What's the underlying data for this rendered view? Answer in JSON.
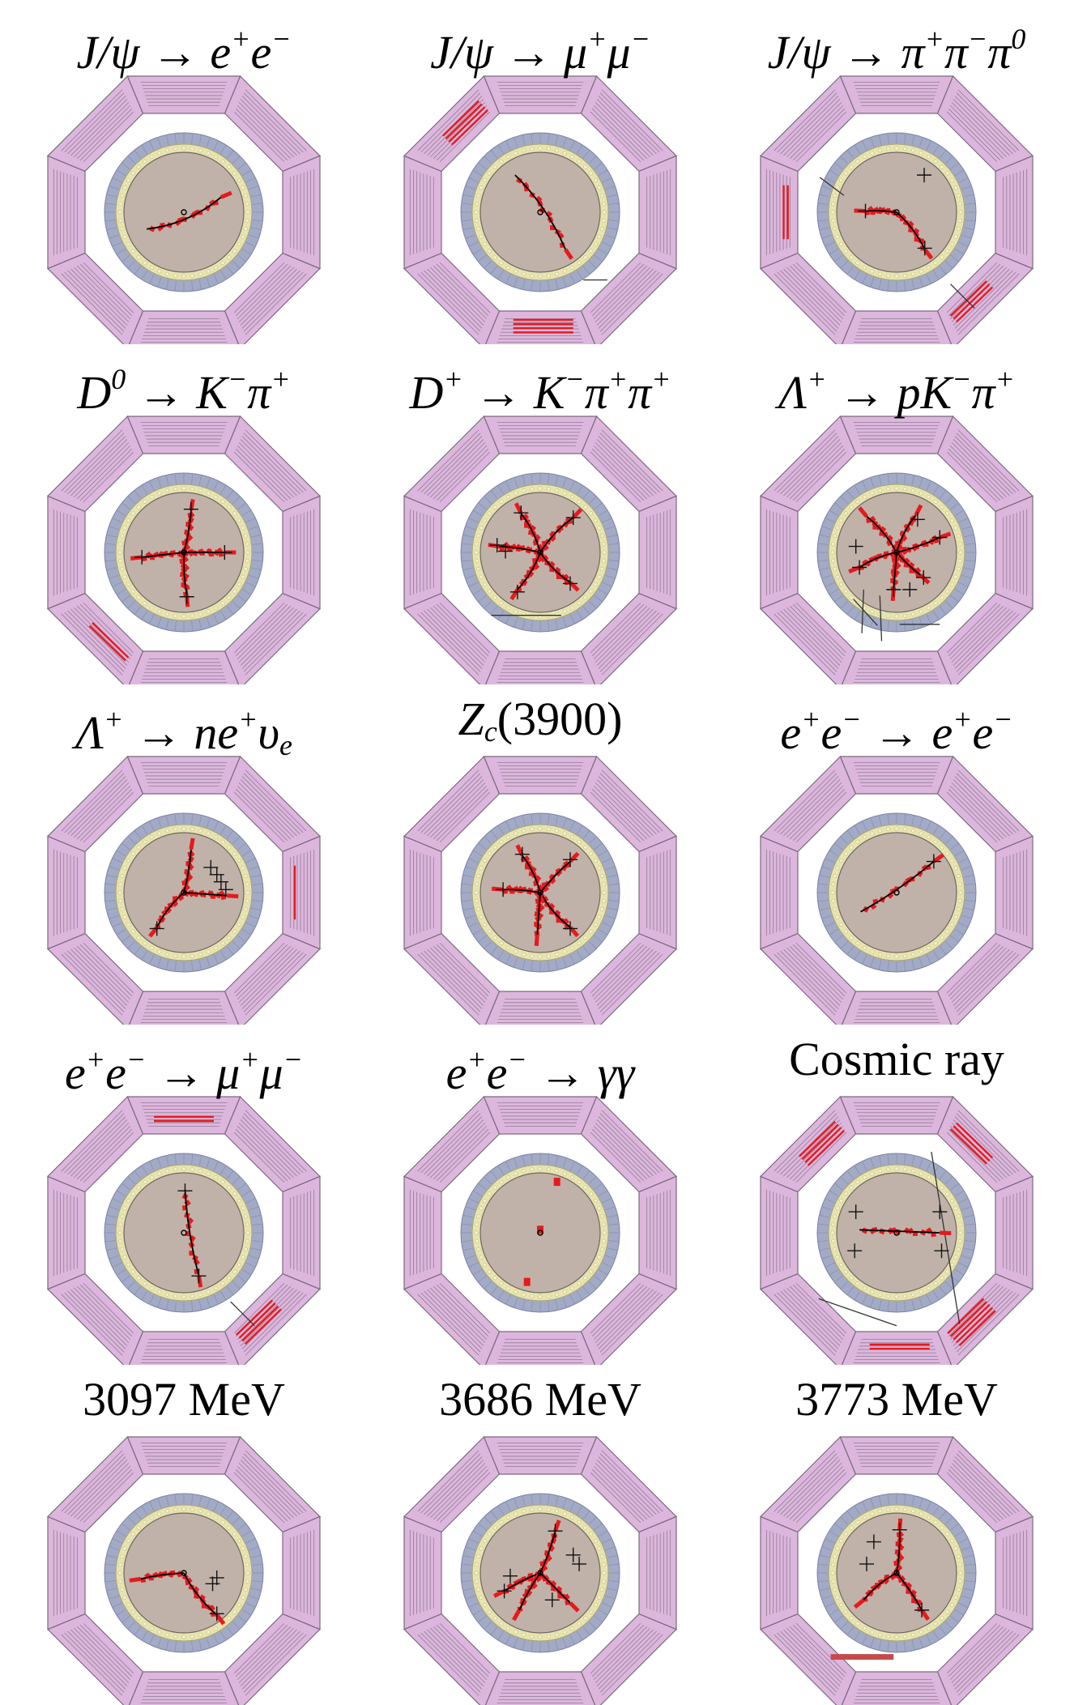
{
  "figure": {
    "panels": [
      {
        "id": "jpsi-ee",
        "title": "J/ψ → e⁺e⁻",
        "title_parts": [
          [
            "t",
            "J/ψ → e"
          ],
          [
            "sup",
            "+"
          ],
          [
            "t",
            "e"
          ],
          [
            "sup",
            "−"
          ]
        ],
        "math": true,
        "tracks": [
          [
            -0.62,
            0.28,
            0.62,
            -0.25,
            0.15
          ]
        ],
        "crosses": [],
        "dots": [],
        "muon_lines": [],
        "long_lines": [],
        "bars": []
      },
      {
        "id": "jpsi-mumu",
        "title": "J/ψ → μ⁺μ⁻",
        "title_parts": [
          [
            "t",
            "J/ψ → μ"
          ],
          [
            "sup",
            "+"
          ],
          [
            "t",
            "μ"
          ],
          [
            "sup",
            "−"
          ]
        ],
        "math": true,
        "tracks": [
          [
            -0.42,
            -0.62,
            0.42,
            0.62,
            -0.1
          ]
        ],
        "crosses": [],
        "dots": [],
        "muon_lines": [
          [
            "top-left",
            4
          ],
          [
            "bottom",
            4
          ]
        ],
        "long_lines": [
          [
            0.72,
            1.13,
            1.12,
            1.13
          ]
        ],
        "bars": []
      },
      {
        "id": "jpsi-3pi",
        "title": "J/ψ → π⁺π⁻π⁰",
        "title_parts": [
          [
            "t",
            "J/ψ → π"
          ],
          [
            "sup",
            "+"
          ],
          [
            "t",
            "π"
          ],
          [
            "sup",
            "−"
          ],
          [
            "t",
            "π"
          ],
          [
            "sup",
            "0"
          ]
        ],
        "math": true,
        "tracks": [
          [
            0,
            0,
            -0.52,
            -0.02,
            0.05
          ],
          [
            0,
            0,
            0.47,
            0.62,
            -0.1
          ]
        ],
        "crosses": [
          [
            0.46,
            -0.62
          ],
          [
            -0.52,
            -0.02
          ],
          [
            0.47,
            0.6
          ]
        ],
        "dots": [],
        "muon_lines": [
          [
            "bottom-right",
            3
          ],
          [
            "left",
            2
          ]
        ],
        "long_lines": [
          [
            -1.28,
            -0.58,
            -0.88,
            -0.28
          ],
          [
            0.9,
            1.2,
            1.3,
            1.6
          ]
        ],
        "bars": []
      },
      {
        "id": "d0",
        "title": "D⁰ → K⁻π⁺",
        "title_parts": [
          [
            "t",
            "D"
          ],
          [
            "sup",
            "0"
          ],
          [
            "t",
            " → K"
          ],
          [
            "sup",
            "−"
          ],
          [
            "t",
            "π"
          ],
          [
            "sup",
            "+"
          ]
        ],
        "math": true,
        "tracks": [
          [
            0,
            0,
            0.12,
            -0.7,
            0.05
          ],
          [
            0,
            0,
            0.68,
            0.0,
            0
          ],
          [
            0,
            0,
            0.05,
            0.72,
            0.05
          ],
          [
            0,
            0,
            -0.7,
            0.08,
            0
          ]
        ],
        "crosses": [
          [
            0.12,
            -0.72
          ],
          [
            0.68,
            0
          ],
          [
            0.05,
            0.74
          ],
          [
            -0.7,
            0.08
          ]
        ],
        "dots": [],
        "muon_lines": [
          [
            "bottom-left",
            2
          ]
        ],
        "long_lines": [],
        "bars": []
      },
      {
        "id": "dplus",
        "title": "D⁺ → K⁻π⁺π⁺",
        "title_parts": [
          [
            "t",
            "D"
          ],
          [
            "sup",
            "+"
          ],
          [
            "t",
            " → K"
          ],
          [
            "sup",
            "−"
          ],
          [
            "t",
            "π"
          ],
          [
            "sup",
            "+"
          ],
          [
            "t",
            "π"
          ],
          [
            "sup",
            "+"
          ]
        ],
        "math": true,
        "tracks": [
          [
            0,
            0,
            -0.32,
            -0.65,
            0.1
          ],
          [
            0,
            0,
            0.55,
            -0.58,
            -0.1
          ],
          [
            0,
            0,
            -0.68,
            -0.1,
            0.05
          ],
          [
            0,
            0,
            0.5,
            0.5,
            0.1
          ],
          [
            0,
            0,
            -0.38,
            0.62,
            -0.1
          ]
        ],
        "crosses": [
          [
            -0.32,
            -0.66
          ],
          [
            0.55,
            -0.58
          ],
          [
            -0.72,
            -0.12
          ],
          [
            -0.58,
            -0.02
          ],
          [
            -0.38,
            0.66
          ],
          [
            0.5,
            0.52
          ]
        ],
        "dots": [],
        "muon_lines": [],
        "long_lines": [
          [
            -0.82,
            1.05,
            0.35,
            1.05
          ]
        ],
        "bars": []
      },
      {
        "id": "lambdac-pkpi",
        "title": "Λc⁺ → pK⁻π⁺",
        "title_parts": [
          [
            "t",
            "Λ"
          ],
          [
            "sup",
            "+"
          ],
          [
            "t",
            " → pK"
          ],
          [
            "sup",
            "−"
          ],
          [
            "t",
            "π"
          ],
          [
            "sup",
            "+"
          ]
        ],
        "math": true,
        "tracks": [
          [
            0,
            0,
            -0.5,
            -0.6,
            0.1
          ],
          [
            0,
            0,
            0.32,
            -0.62,
            -0.1
          ],
          [
            0,
            0,
            0.72,
            -0.25,
            0.05
          ],
          [
            0,
            0,
            0.4,
            0.38,
            0.05
          ],
          [
            0,
            0,
            -0.05,
            0.62,
            0
          ],
          [
            0,
            0,
            -0.62,
            0.25,
            0.1
          ]
        ],
        "crosses": [
          [
            -0.68,
            -0.1
          ],
          [
            -0.62,
            0.25
          ],
          [
            0.35,
            -0.55
          ],
          [
            0.72,
            -0.25
          ],
          [
            0.45,
            0.42
          ],
          [
            -0.05,
            0.62
          ],
          [
            0.22,
            0.62
          ]
        ],
        "dots": [],
        "muon_lines": [],
        "long_lines": [
          [
            -0.72,
            0.78,
            -0.32,
            1.22
          ],
          [
            -0.55,
            0.62,
            -0.58,
            1.35
          ],
          [
            -0.28,
            0.72,
            -0.25,
            1.48
          ],
          [
            0.05,
            1.2,
            0.72,
            1.2
          ]
        ],
        "bars": []
      },
      {
        "id": "lambdac-nev",
        "title": "Λc⁺ → ne⁺νe",
        "title_parts": [
          [
            "t",
            "Λ"
          ],
          [
            "sup",
            "+"
          ],
          [
            "t",
            " → ne"
          ],
          [
            "sup",
            "+"
          ],
          [
            "t",
            "υ"
          ],
          [
            "sub",
            "e"
          ]
        ],
        "math": true,
        "tracks": [
          [
            0,
            0,
            0.12,
            -0.72,
            0.05
          ],
          [
            0,
            0,
            0.72,
            0.05,
            0
          ],
          [
            0,
            0,
            -0.45,
            0.58,
            0.1
          ]
        ],
        "crosses": [
          [
            0.45,
            -0.42
          ],
          [
            0.55,
            -0.3
          ],
          [
            0.62,
            -0.18
          ],
          [
            0.7,
            -0.05
          ],
          [
            -0.45,
            0.6
          ]
        ],
        "dots": [],
        "muon_lines": [
          [
            "right",
            1
          ]
        ],
        "long_lines": [],
        "bars": []
      },
      {
        "id": "zc3900",
        "title": "Zc(3900)",
        "title_parts": [
          [
            "t",
            "Z"
          ],
          [
            "sub",
            "c"
          ],
          [
            "u",
            "(3900)"
          ]
        ],
        "math": true,
        "tracks": [
          [
            0,
            0,
            -0.3,
            -0.62,
            0.1
          ],
          [
            0,
            0,
            0.5,
            -0.52,
            -0.05
          ],
          [
            0,
            0,
            -0.62,
            -0.05,
            0.05
          ],
          [
            0,
            0,
            0.5,
            0.58,
            0.1
          ],
          [
            0,
            0,
            -0.05,
            0.7,
            0
          ]
        ],
        "crosses": [
          [
            -0.3,
            -0.64
          ],
          [
            0.5,
            -0.55
          ],
          [
            -0.62,
            -0.05
          ],
          [
            0.5,
            0.6
          ]
        ],
        "dots": [],
        "muon_lines": [],
        "long_lines": [],
        "bars": []
      },
      {
        "id": "bhabha",
        "title": "e⁺e⁻ → e⁺e⁻",
        "title_parts": [
          [
            "t",
            "e"
          ],
          [
            "sup",
            "+"
          ],
          [
            "t",
            "e"
          ],
          [
            "sup",
            "−"
          ],
          [
            "t",
            " → e"
          ],
          [
            "sup",
            "+"
          ],
          [
            "t",
            "e"
          ],
          [
            "sup",
            "−"
          ]
        ],
        "math": true,
        "tracks": [
          [
            -0.6,
            0.32,
            0.62,
            -0.52,
            0.05
          ]
        ],
        "crosses": [
          [
            0.62,
            -0.52
          ]
        ],
        "dots": [],
        "muon_lines": [],
        "long_lines": [],
        "bars": []
      },
      {
        "id": "dimuon",
        "title": "e⁺e⁻ → μ⁺μ⁻",
        "title_parts": [
          [
            "t",
            "e"
          ],
          [
            "sup",
            "+"
          ],
          [
            "t",
            "e"
          ],
          [
            "sup",
            "−"
          ],
          [
            "t",
            " → μ"
          ],
          [
            "sup",
            "+"
          ],
          [
            "t",
            "μ"
          ],
          [
            "sup",
            "−"
          ]
        ],
        "math": true,
        "tracks": [
          [
            0.02,
            -0.72,
            0.25,
            0.72,
            0.05
          ]
        ],
        "crosses": [
          [
            0.02,
            -0.7
          ],
          [
            0.25,
            0.72
          ]
        ],
        "dots": [],
        "muon_lines": [
          [
            "bottom-right",
            4
          ],
          [
            "top",
            2
          ]
        ],
        "long_lines": [
          [
            0.78,
            1.15,
            1.18,
            1.55
          ]
        ],
        "bars": []
      },
      {
        "id": "diphoton",
        "title": "e⁺e⁻ → γγ",
        "title_parts": [
          [
            "t",
            "e"
          ],
          [
            "sup",
            "+"
          ],
          [
            "t",
            "e"
          ],
          [
            "sup",
            "−"
          ],
          [
            "t",
            " → γγ"
          ]
        ],
        "math": true,
        "tracks": [],
        "crosses": [],
        "dots": [
          [
            0.28,
            -0.85
          ],
          [
            -0.22,
            0.82
          ],
          [
            0.0,
            -0.05
          ]
        ],
        "muon_lines": [],
        "long_lines": [],
        "bars": []
      },
      {
        "id": "cosmic",
        "title": "Cosmic ray",
        "title_parts": [
          [
            "u",
            "Cosmic ray"
          ]
        ],
        "math": false,
        "tracks": [
          [
            -0.62,
            -0.05,
            0.72,
            0.0,
            0
          ]
        ],
        "crosses": [
          [
            -0.68,
            -0.35
          ],
          [
            -0.7,
            0.3
          ],
          [
            0.72,
            -0.35
          ],
          [
            0.75,
            0.3
          ]
        ],
        "dots": [],
        "muon_lines": [
          [
            "top-left",
            4
          ],
          [
            "top-right",
            3
          ],
          [
            "bottom-right",
            5
          ],
          [
            "bottom",
            2
          ]
        ],
        "long_lines": [
          [
            0.58,
            -1.35,
            1.05,
            1.52
          ],
          [
            -1.3,
            1.1,
            0.0,
            1.55
          ]
        ],
        "bars": []
      },
      {
        "id": "e3097",
        "title": "3097 MeV",
        "title_parts": [
          [
            "u",
            "3097 MeV"
          ]
        ],
        "math": false,
        "tracks": [
          [
            0,
            0,
            -0.72,
            0.1,
            0.05
          ],
          [
            0,
            0,
            0.55,
            0.7,
            0.1
          ]
        ],
        "crosses": [
          [
            0.55,
            0.08
          ],
          [
            0.48,
            0.18
          ],
          [
            0.55,
            0.68
          ]
        ],
        "dots": [],
        "muon_lines": [],
        "long_lines": [],
        "bars": []
      },
      {
        "id": "e3686",
        "title": "3686 MeV",
        "title_parts": [
          [
            "u",
            "3686 MeV"
          ]
        ],
        "math": false,
        "tracks": [
          [
            0,
            0,
            0.25,
            -0.7,
            0.05
          ],
          [
            0,
            0,
            -0.6,
            0.3,
            0.05
          ],
          [
            0,
            0,
            -0.35,
            0.62,
            0.05
          ],
          [
            0,
            0,
            0.5,
            0.5,
            0
          ]
        ],
        "crosses": [
          [
            0.55,
            -0.3
          ],
          [
            0.65,
            -0.15
          ],
          [
            0.25,
            -0.7
          ],
          [
            -0.6,
            0.3
          ],
          [
            -0.5,
            0.05
          ],
          [
            0.2,
            0.45
          ]
        ],
        "dots": [],
        "muon_lines": [],
        "long_lines": [],
        "bars": []
      },
      {
        "id": "e3773",
        "title": "3773 MeV",
        "title_parts": [
          [
            "u",
            "3773 MeV"
          ]
        ],
        "math": false,
        "tracks": [
          [
            0,
            0,
            0.05,
            -0.72,
            0.05
          ],
          [
            0,
            0,
            0.42,
            0.62,
            -0.05
          ],
          [
            0,
            0,
            -0.55,
            0.45,
            0.1
          ]
        ],
        "crosses": [
          [
            -0.38,
            -0.52
          ],
          [
            -0.5,
            -0.15
          ],
          [
            0.05,
            -0.72
          ],
          [
            0.42,
            0.62
          ]
        ],
        "dots": [],
        "muon_lines": [],
        "long_lines": [],
        "bars": [
          [
            -1.1,
            1.4,
            -0.05,
            1.4
          ]
        ]
      }
    ]
  },
  "colors": {
    "muon_fill": "#ddb6de",
    "muon_stroke": "#7a6a7c",
    "emc": "#a2aac6",
    "tof": "#e8e4b0",
    "mdc": "#c0b2a8",
    "track": "#000000",
    "hit": "#e8191d",
    "bar": "#c54a4a"
  }
}
